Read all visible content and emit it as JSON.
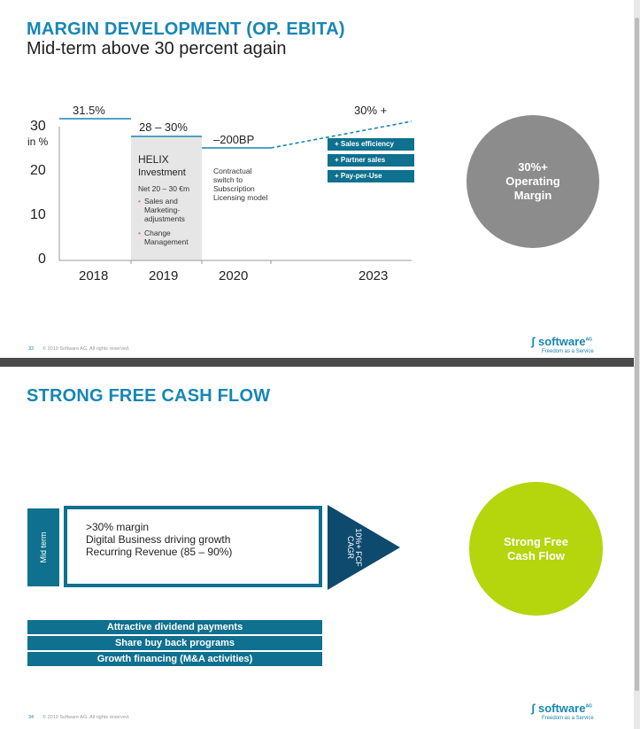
{
  "slide1": {
    "title": "MARGIN DEVELOPMENT (OP. EBITA)",
    "subtitle": "Mid-term above 30 percent again",
    "chart_data": {
      "type": "line",
      "yticks": [
        "30",
        "20",
        "10",
        "0"
      ],
      "yunit": "in %",
      "ylim": [
        0,
        30
      ],
      "categories": [
        "2018",
        "2019",
        "2020",
        "2023"
      ],
      "segments": [
        {
          "year": "2018",
          "value": 31.5,
          "label": "31.5%"
        },
        {
          "year": "2019",
          "value": 27.5,
          "label": "28 – 30%"
        },
        {
          "year": "2020",
          "value": 25,
          "label": "–200BP"
        },
        {
          "year": "2023",
          "value": 30,
          "label": "30% +"
        }
      ]
    },
    "helix": {
      "title": "HELIX",
      "subtitle": "Investment",
      "net": "Net 20 – 30 €m",
      "bullets": [
        "Sales and Marketing-adjustments",
        "Change Management"
      ]
    },
    "contractual": "Contractual switch to Subscription Licensing model",
    "levers": [
      "+ Sales efficiency",
      "+ Partner sales",
      "+ Pay-per-Use"
    ],
    "circle": "30%+ Operating Margin",
    "footer": {
      "page": "33",
      "copy": "© 2019 Software AG. All rights reserved."
    },
    "logo": {
      "name": "software",
      "ag": "AG",
      "tagline": "Freedom as a Service"
    },
    "colors": {
      "teal": "#0f708f",
      "blue": "#1786b5",
      "gray": "#8c8c8c"
    }
  },
  "slide2": {
    "title": "STRONG FREE CASH FLOW",
    "mid_term": "Mid term",
    "box_lines": [
      ">30% margin",
      "Digital Business driving growth",
      "Recurring Revenue (85 – 90%)"
    ],
    "arrow_text": "10%+ FCF CAGR",
    "circle": "Strong Free Cash Flow",
    "bars": [
      "Attractive dividend payments",
      "Share buy back programs",
      "Growth financing (M&A activities)"
    ],
    "footer": {
      "page": "34",
      "copy": "© 2019 Software AG. All rights reserved."
    },
    "logo": {
      "name": "software",
      "ag": "AG",
      "tagline": "Freedom as a Service"
    },
    "colors": {
      "teal": "#0f708f",
      "navy": "#0e4a6e",
      "green": "#b5d50c"
    }
  }
}
